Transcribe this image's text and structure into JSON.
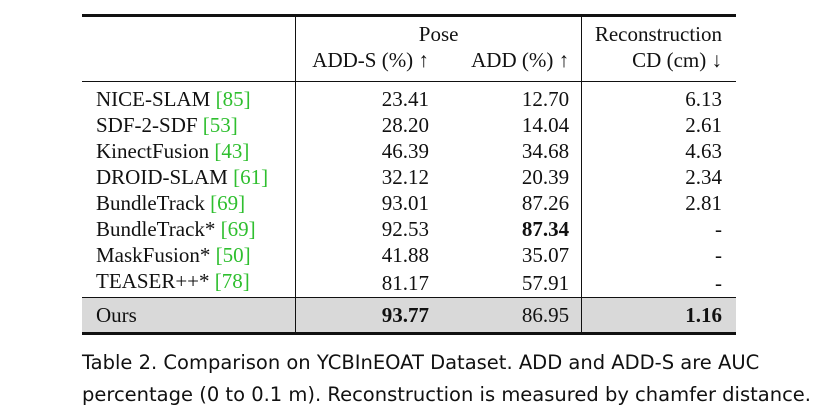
{
  "header": {
    "pose_group": "Pose",
    "reconstruction_group": "Reconstruction",
    "adds_col": "ADD-S (%) ↑",
    "add_col": "ADD (%) ↑",
    "cd_col": "CD (cm) ↓"
  },
  "rows": [
    {
      "method": "NICE-SLAM",
      "ref": "[85]",
      "adds": "23.41",
      "add": "12.70",
      "cd": "6.13"
    },
    {
      "method": "SDF-2-SDF",
      "ref": "[53]",
      "adds": "28.20",
      "add": "14.04",
      "cd": "2.61"
    },
    {
      "method": "KinectFusion",
      "ref": "[43]",
      "adds": "46.39",
      "add": "34.68",
      "cd": "4.63"
    },
    {
      "method": "DROID-SLAM",
      "ref": "[61]",
      "adds": "32.12",
      "add": "20.39",
      "cd": "2.34"
    },
    {
      "method": "BundleTrack",
      "ref": "[69]",
      "adds": "93.01",
      "add": "87.26",
      "cd": "2.81"
    },
    {
      "method": "BundleTrack*",
      "ref": "[69]",
      "adds": "92.53",
      "add": "87.34",
      "cd": "-"
    },
    {
      "method": "MaskFusion*",
      "ref": "[50]",
      "adds": "41.88",
      "add": "35.07",
      "cd": "-"
    },
    {
      "method": "TEASER++*",
      "ref": "[78]",
      "adds": "81.17",
      "add": "57.91",
      "cd": "-"
    }
  ],
  "ours": {
    "method": "Ours",
    "adds": "93.77",
    "add": "86.95",
    "cd": "1.16"
  },
  "caption_line1": "Table 2. Comparison on YCBInEOAT Dataset. ADD and ADD-S are AUC",
  "caption_line2": "percentage (0 to 0.1 m). Reconstruction is measured by chamfer distance."
}
